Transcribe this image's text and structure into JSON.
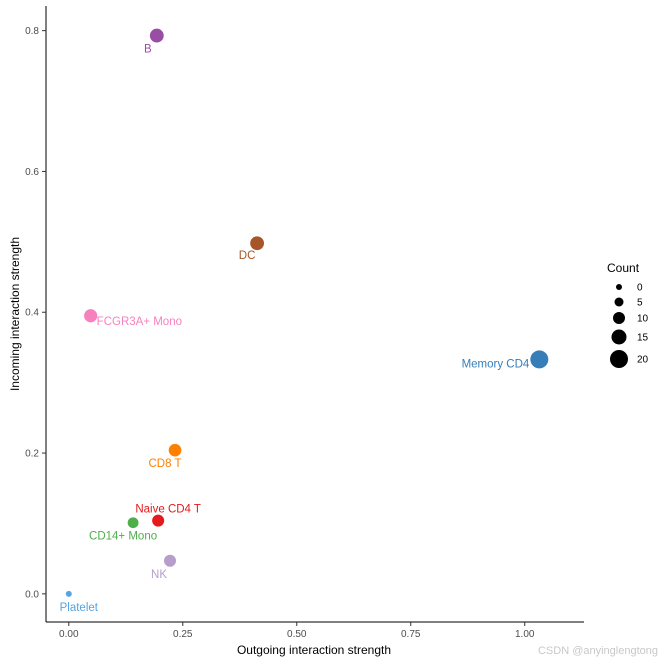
{
  "chart_data": {
    "type": "scatter",
    "xlabel": "Outgoing interaction strength",
    "ylabel": "Incoming interaction strength",
    "xlim": [
      -0.05,
      1.13
    ],
    "ylim": [
      -0.04,
      0.835
    ],
    "x_ticks": [
      0,
      0.25,
      0.5,
      0.75,
      1
    ],
    "x_tick_labels": [
      "0.00",
      "0.25",
      "0.50",
      "0.75",
      "1.00"
    ],
    "y_ticks": [
      0,
      0.2,
      0.4,
      0.6,
      0.8
    ],
    "y_tick_labels": [
      "0.0",
      "0.2",
      "0.4",
      "0.6",
      "0.8"
    ],
    "grid": false,
    "points": [
      {
        "label": "B",
        "x": 0.193,
        "y": 0.793,
        "count": 13,
        "color": "#984ea3"
      },
      {
        "label": "DC",
        "x": 0.413,
        "y": 0.498,
        "count": 13,
        "color": "#a65628"
      },
      {
        "label": "FCGR3A+ Mono",
        "x": 0.048,
        "y": 0.395,
        "count": 12,
        "color": "#f781bf"
      },
      {
        "label": "Memory CD4 T",
        "x": 1.032,
        "y": 0.333,
        "count": 20,
        "color": "#377eb8"
      },
      {
        "label": "CD8 T",
        "x": 0.233,
        "y": 0.204,
        "count": 11,
        "color": "#ff7f00"
      },
      {
        "label": "Naive CD4 T",
        "x": 0.196,
        "y": 0.104,
        "count": 10,
        "color": "#e41a1c"
      },
      {
        "label": "CD14+ Mono",
        "x": 0.141,
        "y": 0.101,
        "count": 8,
        "color": "#4daf4a"
      },
      {
        "label": "NK",
        "x": 0.222,
        "y": 0.047,
        "count": 10,
        "color": "#b79dc9"
      },
      {
        "label": "Platelet",
        "x": 0.0,
        "y": 0.0,
        "count": 0,
        "color": "#56a5de"
      }
    ],
    "legend": {
      "title": "Count",
      "placement": "right",
      "entries": [
        {
          "label": "0",
          "count": 0
        },
        {
          "label": "5",
          "count": 5
        },
        {
          "label": "10",
          "count": 10
        },
        {
          "label": "15",
          "count": 15
        },
        {
          "label": "20",
          "count": 20
        }
      ],
      "color": "#000000"
    }
  },
  "watermark": "CSDN @anyinglengtong"
}
